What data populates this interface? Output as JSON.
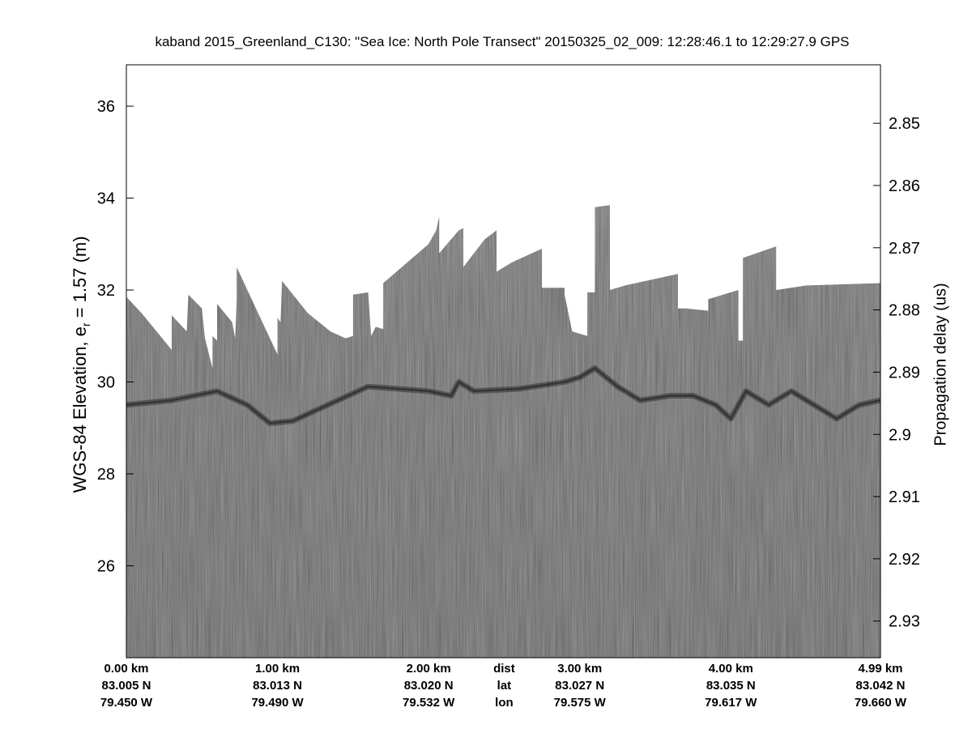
{
  "chart_data": {
    "type": "radargram",
    "title": "kaband 2015_Greenland_C130: \"Sea Ice: North Pole Transect\"  20150325_02_009: 12:28:46.1 to 12:29:27.9 GPS",
    "ylabel_left": "WGS-84 Elevation, e",
    "ylabel_left_sub": "r",
    "ylabel_left_suffix": " = 1.57 (m)",
    "ylabel_right": "Propagation delay (us)",
    "ylim_left": [
      24.0,
      36.9
    ],
    "yticks_left": [
      {
        "value": 26,
        "label": "26"
      },
      {
        "value": 28,
        "label": "28"
      },
      {
        "value": 30,
        "label": "30"
      },
      {
        "value": 32,
        "label": "32"
      },
      {
        "value": 34,
        "label": "34"
      },
      {
        "value": 36,
        "label": "36"
      }
    ],
    "ylim_right_delay": [
      2.8406,
      2.9359
    ],
    "yticks_right": [
      {
        "value": 2.85,
        "label": "2.85"
      },
      {
        "value": 2.86,
        "label": "2.86"
      },
      {
        "value": 2.87,
        "label": "2.87"
      },
      {
        "value": 2.88,
        "label": "2.88"
      },
      {
        "value": 2.89,
        "label": "2.89"
      },
      {
        "value": 2.9,
        "label": "2.9"
      },
      {
        "value": 2.91,
        "label": "2.91"
      },
      {
        "value": 2.92,
        "label": "2.92"
      },
      {
        "value": 2.93,
        "label": "2.93"
      }
    ],
    "xlim_km": [
      0.0,
      4.99
    ],
    "row_labels": {
      "dist": "dist",
      "lat": "lat",
      "lon": "lon"
    },
    "row_labels_km": 2.5,
    "xticks": [
      {
        "km": 0.0,
        "dist": "0.00 km",
        "lat": "83.005 N",
        "lon": "79.450 W"
      },
      {
        "km": 1.0,
        "dist": "1.00 km",
        "lat": "83.013 N",
        "lon": "79.490 W"
      },
      {
        "km": 2.0,
        "dist": "2.00 km",
        "lat": "83.020 N",
        "lon": "79.532 W"
      },
      {
        "km": 3.0,
        "dist": "3.00 km",
        "lat": "83.027 N",
        "lon": "79.575 W"
      },
      {
        "km": 4.0,
        "dist": "4.00 km",
        "lat": "83.035 N",
        "lon": "79.617 W"
      },
      {
        "km": 4.99,
        "dist": "4.99 km",
        "lat": "83.042 N",
        "lon": "79.660 W"
      }
    ],
    "surface_profile": [
      [
        0.0,
        31.85
      ],
      [
        0.1,
        31.5
      ],
      [
        0.2,
        31.1
      ],
      [
        0.3,
        30.7
      ],
      [
        0.3,
        31.45
      ],
      [
        0.4,
        31.1
      ],
      [
        0.41,
        31.9
      ],
      [
        0.5,
        31.6
      ],
      [
        0.52,
        30.95
      ],
      [
        0.57,
        30.3
      ],
      [
        0.57,
        31.0
      ],
      [
        0.6,
        30.9
      ],
      [
        0.6,
        31.7
      ],
      [
        0.7,
        31.3
      ],
      [
        0.72,
        30.95
      ],
      [
        0.73,
        31.8
      ],
      [
        0.73,
        32.5
      ],
      [
        0.9,
        31.3
      ],
      [
        1.0,
        30.6
      ],
      [
        1.0,
        31.4
      ],
      [
        1.02,
        31.3
      ],
      [
        1.03,
        32.2
      ],
      [
        1.2,
        31.5
      ],
      [
        1.35,
        31.1
      ],
      [
        1.45,
        30.95
      ],
      [
        1.5,
        31.0
      ],
      [
        1.5,
        31.9
      ],
      [
        1.6,
        31.95
      ],
      [
        1.62,
        31.0
      ],
      [
        1.65,
        31.2
      ],
      [
        1.7,
        31.15
      ],
      [
        1.7,
        32.15
      ],
      [
        2.0,
        33.0
      ],
      [
        2.05,
        33.3
      ],
      [
        2.07,
        33.6
      ],
      [
        2.07,
        32.8
      ],
      [
        2.2,
        33.3
      ],
      [
        2.23,
        33.35
      ],
      [
        2.23,
        32.5
      ],
      [
        2.37,
        33.1
      ],
      [
        2.45,
        33.3
      ],
      [
        2.45,
        32.4
      ],
      [
        2.55,
        32.6
      ],
      [
        2.75,
        32.9
      ],
      [
        2.75,
        32.05
      ],
      [
        2.9,
        32.05
      ],
      [
        2.9,
        31.9
      ],
      [
        2.95,
        31.1
      ],
      [
        3.05,
        31.0
      ],
      [
        3.05,
        31.95
      ],
      [
        3.1,
        31.95
      ],
      [
        3.1,
        33.8
      ],
      [
        3.2,
        33.85
      ],
      [
        3.2,
        32.0
      ],
      [
        3.3,
        32.1
      ],
      [
        3.65,
        32.35
      ],
      [
        3.65,
        31.6
      ],
      [
        3.7,
        31.6
      ],
      [
        3.85,
        31.55
      ],
      [
        3.85,
        31.8
      ],
      [
        4.05,
        32.0
      ],
      [
        4.05,
        30.9
      ],
      [
        4.08,
        30.9
      ],
      [
        4.08,
        32.7
      ],
      [
        4.3,
        32.95
      ],
      [
        4.3,
        32.0
      ],
      [
        4.5,
        32.1
      ],
      [
        4.99,
        32.15
      ]
    ],
    "dark_layer_profile": [
      [
        0.0,
        29.5
      ],
      [
        0.3,
        29.6
      ],
      [
        0.6,
        29.8
      ],
      [
        0.8,
        29.5
      ],
      [
        0.95,
        29.1
      ],
      [
        1.1,
        29.15
      ],
      [
        1.2,
        29.3
      ],
      [
        1.4,
        29.6
      ],
      [
        1.6,
        29.9
      ],
      [
        2.0,
        29.8
      ],
      [
        2.15,
        29.7
      ],
      [
        2.2,
        30.0
      ],
      [
        2.3,
        29.8
      ],
      [
        2.6,
        29.85
      ],
      [
        2.9,
        30.0
      ],
      [
        3.0,
        30.1
      ],
      [
        3.1,
        30.3
      ],
      [
        3.25,
        29.9
      ],
      [
        3.4,
        29.6
      ],
      [
        3.6,
        29.7
      ],
      [
        3.75,
        29.7
      ],
      [
        3.9,
        29.5
      ],
      [
        4.0,
        29.2
      ],
      [
        4.1,
        29.8
      ],
      [
        4.25,
        29.5
      ],
      [
        4.4,
        29.8
      ],
      [
        4.55,
        29.5
      ],
      [
        4.7,
        29.2
      ],
      [
        4.85,
        29.5
      ],
      [
        4.99,
        29.6
      ]
    ]
  }
}
